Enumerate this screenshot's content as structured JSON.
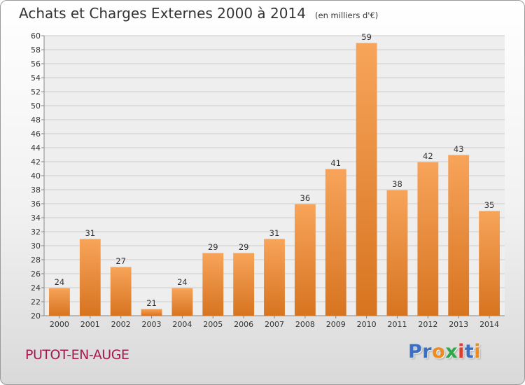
{
  "header": {
    "title": "Achats et Charges Externes 2000 à 2014",
    "subtitle": "(en milliers d'€)"
  },
  "footer": {
    "place": "PUTOT-EN-AUGE",
    "logo_letters": [
      "P",
      "r",
      "o",
      "x",
      "i",
      "t",
      "i"
    ],
    "logo_colors": [
      "#3a6fc4",
      "#3a6fc4",
      "#f08a1c",
      "#2fa84a",
      "#e23a2e",
      "#3a6fc4",
      "#f08a1c"
    ]
  },
  "colors": {
    "bar_light": "#f7a45a",
    "bar_dark": "#d77420",
    "grid": "#cccccc",
    "plot_bg": "#eeeeee"
  },
  "chart_data": {
    "type": "bar",
    "title": "Achats et Charges Externes 2000 à 2014",
    "subtitle": "(en milliers d'€)",
    "categories": [
      "2000",
      "2001",
      "2002",
      "2003",
      "2004",
      "2005",
      "2006",
      "2007",
      "2008",
      "2009",
      "2010",
      "2011",
      "2012",
      "2013",
      "2014"
    ],
    "values": [
      24,
      31,
      27,
      21,
      24,
      29,
      29,
      31,
      36,
      41,
      59,
      38,
      42,
      43,
      35
    ],
    "xlabel": "",
    "ylabel": "",
    "ylim": [
      20,
      60
    ],
    "ytick_step": 2,
    "grid": true,
    "legend": "none"
  }
}
